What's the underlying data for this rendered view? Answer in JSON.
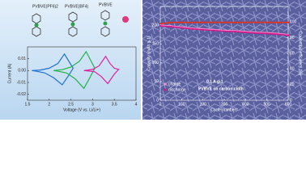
{
  "chart_data": [
    {
      "type": "line",
      "xlabel": "Voltage (V vs. Li/Li+)",
      "ylabel": "Current (A)",
      "annotations": [
        "PVBVE(PF6)2",
        "PVBVE(BF4)",
        "PVBVE"
      ],
      "xlim": [
        1.5,
        4.0
      ],
      "xticks": [
        1.5,
        2.0,
        2.5,
        3.0,
        3.5,
        4.0
      ],
      "ylim": [
        -0.025,
        0.02
      ],
      "yticks": [
        -0.02,
        -0.01,
        {
          "value": 0,
          "label": "0.00"
        },
        0.01
      ],
      "series": [
        {
          "color": "#1f6fd6",
          "x": [
            1.6,
            1.8,
            2.0,
            2.2,
            2.35,
            2.45,
            2.55,
            2.45,
            2.3,
            2.1,
            1.9,
            1.7,
            1.6
          ],
          "values": [
            0.0,
            0.0005,
            0.002,
            0.006,
            0.014,
            0.008,
            0.002,
            -0.004,
            -0.012,
            -0.006,
            -0.002,
            -0.0005,
            0.0
          ]
        },
        {
          "color": "#22b24c",
          "x": [
            2.1,
            2.3,
            2.5,
            2.7,
            2.85,
            2.95,
            3.05,
            2.95,
            2.8,
            2.6,
            2.4,
            2.2,
            2.1
          ],
          "values": [
            0.0,
            0.0008,
            0.003,
            0.008,
            0.016,
            0.009,
            0.002,
            -0.005,
            -0.015,
            -0.007,
            -0.002,
            -0.0005,
            0.0
          ]
        },
        {
          "color": "#e0209a",
          "x": [
            2.8,
            3.0,
            3.15,
            3.3,
            3.4,
            3.5,
            3.6,
            3.5,
            3.35,
            3.2,
            3.05,
            2.9,
            2.8
          ],
          "values": [
            0.0,
            0.001,
            0.004,
            0.012,
            0.006,
            0.002,
            0.001,
            -0.003,
            -0.011,
            -0.005,
            -0.001,
            -0.0003,
            0.0
          ]
        }
      ]
    },
    {
      "type": "line",
      "xlabel": "Cycle numbers",
      "ylabel": "Capacity (mAh g-1)",
      "y2label": "Coulombic efficiency (%)",
      "annotations": [
        "0.1 A g-1",
        "PVBVE on carbon cloth"
      ],
      "x": [
        0,
        50,
        100,
        150,
        200,
        250,
        300,
        350,
        400,
        450,
        500,
        550,
        600
      ],
      "xlim": [
        0,
        600
      ],
      "xticks": [
        0,
        100,
        200,
        300,
        400,
        500,
        600
      ],
      "ylim": [
        0,
        250
      ],
      "yticks": [
        0,
        50,
        100,
        150,
        200
      ],
      "y2lim": [
        0,
        120
      ],
      "y2ticks": [
        0,
        20,
        40,
        60,
        80,
        100
      ],
      "legend": "bottom-left",
      "series": [
        {
          "name": "charge",
          "color": "#ff8fd0",
          "values": [
            200,
            198,
            195,
            192,
            190,
            188,
            186,
            185,
            183,
            181,
            180,
            178,
            175
          ]
        },
        {
          "name": "discharge",
          "color": "#d01a8a",
          "values": [
            198,
            196,
            193,
            190,
            188,
            186,
            184,
            183,
            181,
            179,
            178,
            176,
            173
          ]
        },
        {
          "color": "#e8301c",
          "axis": "y2",
          "values": [
            98,
            99.5,
            99.6,
            99.5,
            99.6,
            99.7,
            99.6,
            99.5,
            99.6,
            99.7,
            99.6,
            99.5,
            99.6
          ]
        }
      ]
    }
  ]
}
